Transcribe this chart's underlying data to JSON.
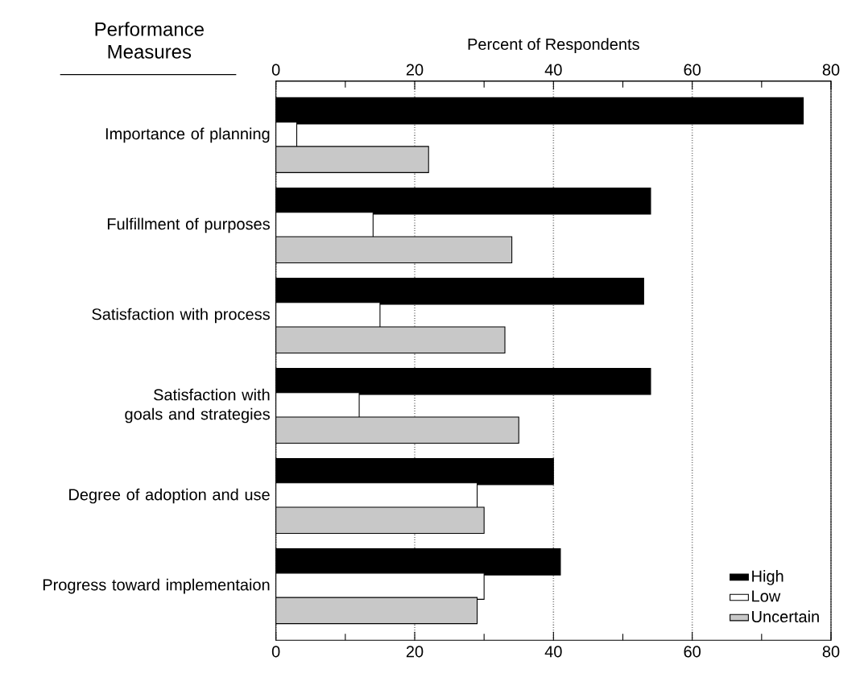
{
  "chart_data": {
    "type": "bar",
    "orientation": "horizontal",
    "ylabel": "Performance Measures",
    "x2label": "Percent of Respondents",
    "categories": [
      "Importance of planning",
      "Fulfillment of purposes",
      "Satisfaction with process",
      "Satisfaction with goals and strategies",
      "Degree of adoption and use",
      "Progress toward implementaion"
    ],
    "series": [
      {
        "name": "High",
        "color": "#000000",
        "values": [
          76,
          54,
          53,
          54,
          40,
          41
        ]
      },
      {
        "name": "Low",
        "color": "#ffffff",
        "values": [
          3,
          14,
          15,
          12,
          29,
          30
        ]
      },
      {
        "name": "Uncertain",
        "color": "#c8c8c8",
        "values": [
          22,
          34,
          33,
          35,
          30,
          29
        ]
      }
    ],
    "xlim": [
      0,
      80
    ],
    "xticks": [
      0,
      {
        "value": 10,
        "label": null
      },
      20,
      {
        "value": 30,
        "label": null
      },
      40,
      {
        "value": 50,
        "label": null
      },
      60,
      {
        "value": 70,
        "label": null
      },
      80
    ],
    "x2lim": [
      0,
      80
    ],
    "x2ticks": [
      0,
      {
        "value": 10,
        "label": null
      },
      20,
      {
        "value": 30,
        "label": null
      },
      40,
      {
        "value": 50,
        "label": null
      },
      60,
      {
        "value": 70,
        "label": null
      },
      80
    ],
    "grid": "x",
    "legend": "bottom right"
  }
}
